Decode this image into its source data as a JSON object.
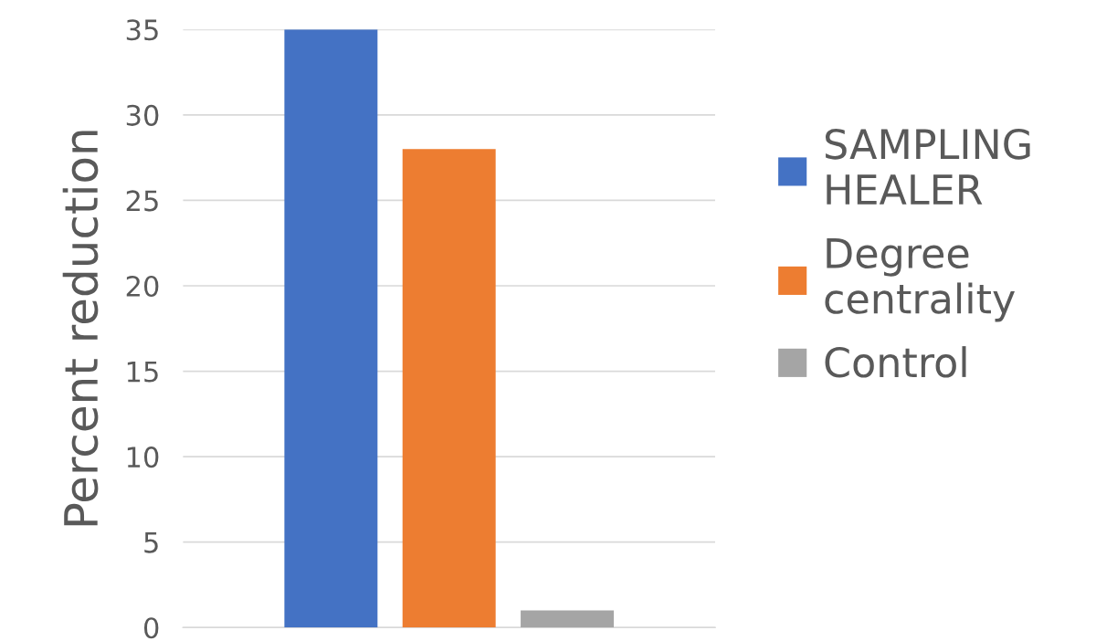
{
  "chart_data": {
    "type": "bar",
    "ylabel": "Percent reduction",
    "categories": [
      null
    ],
    "series": [
      {
        "name": "SAMPLING HEALER",
        "color": "#4472c4",
        "values": [
          35
        ]
      },
      {
        "name": "Degree centrality",
        "color": "#ed7d31",
        "values": [
          28
        ]
      },
      {
        "name": "Control",
        "color": "#a5a5a5",
        "values": [
          1
        ]
      }
    ],
    "ylim": [
      0,
      35
    ],
    "yticks": [
      0,
      5,
      10,
      15,
      20,
      25,
      30,
      35
    ],
    "grid": "y",
    "legend": "right"
  }
}
